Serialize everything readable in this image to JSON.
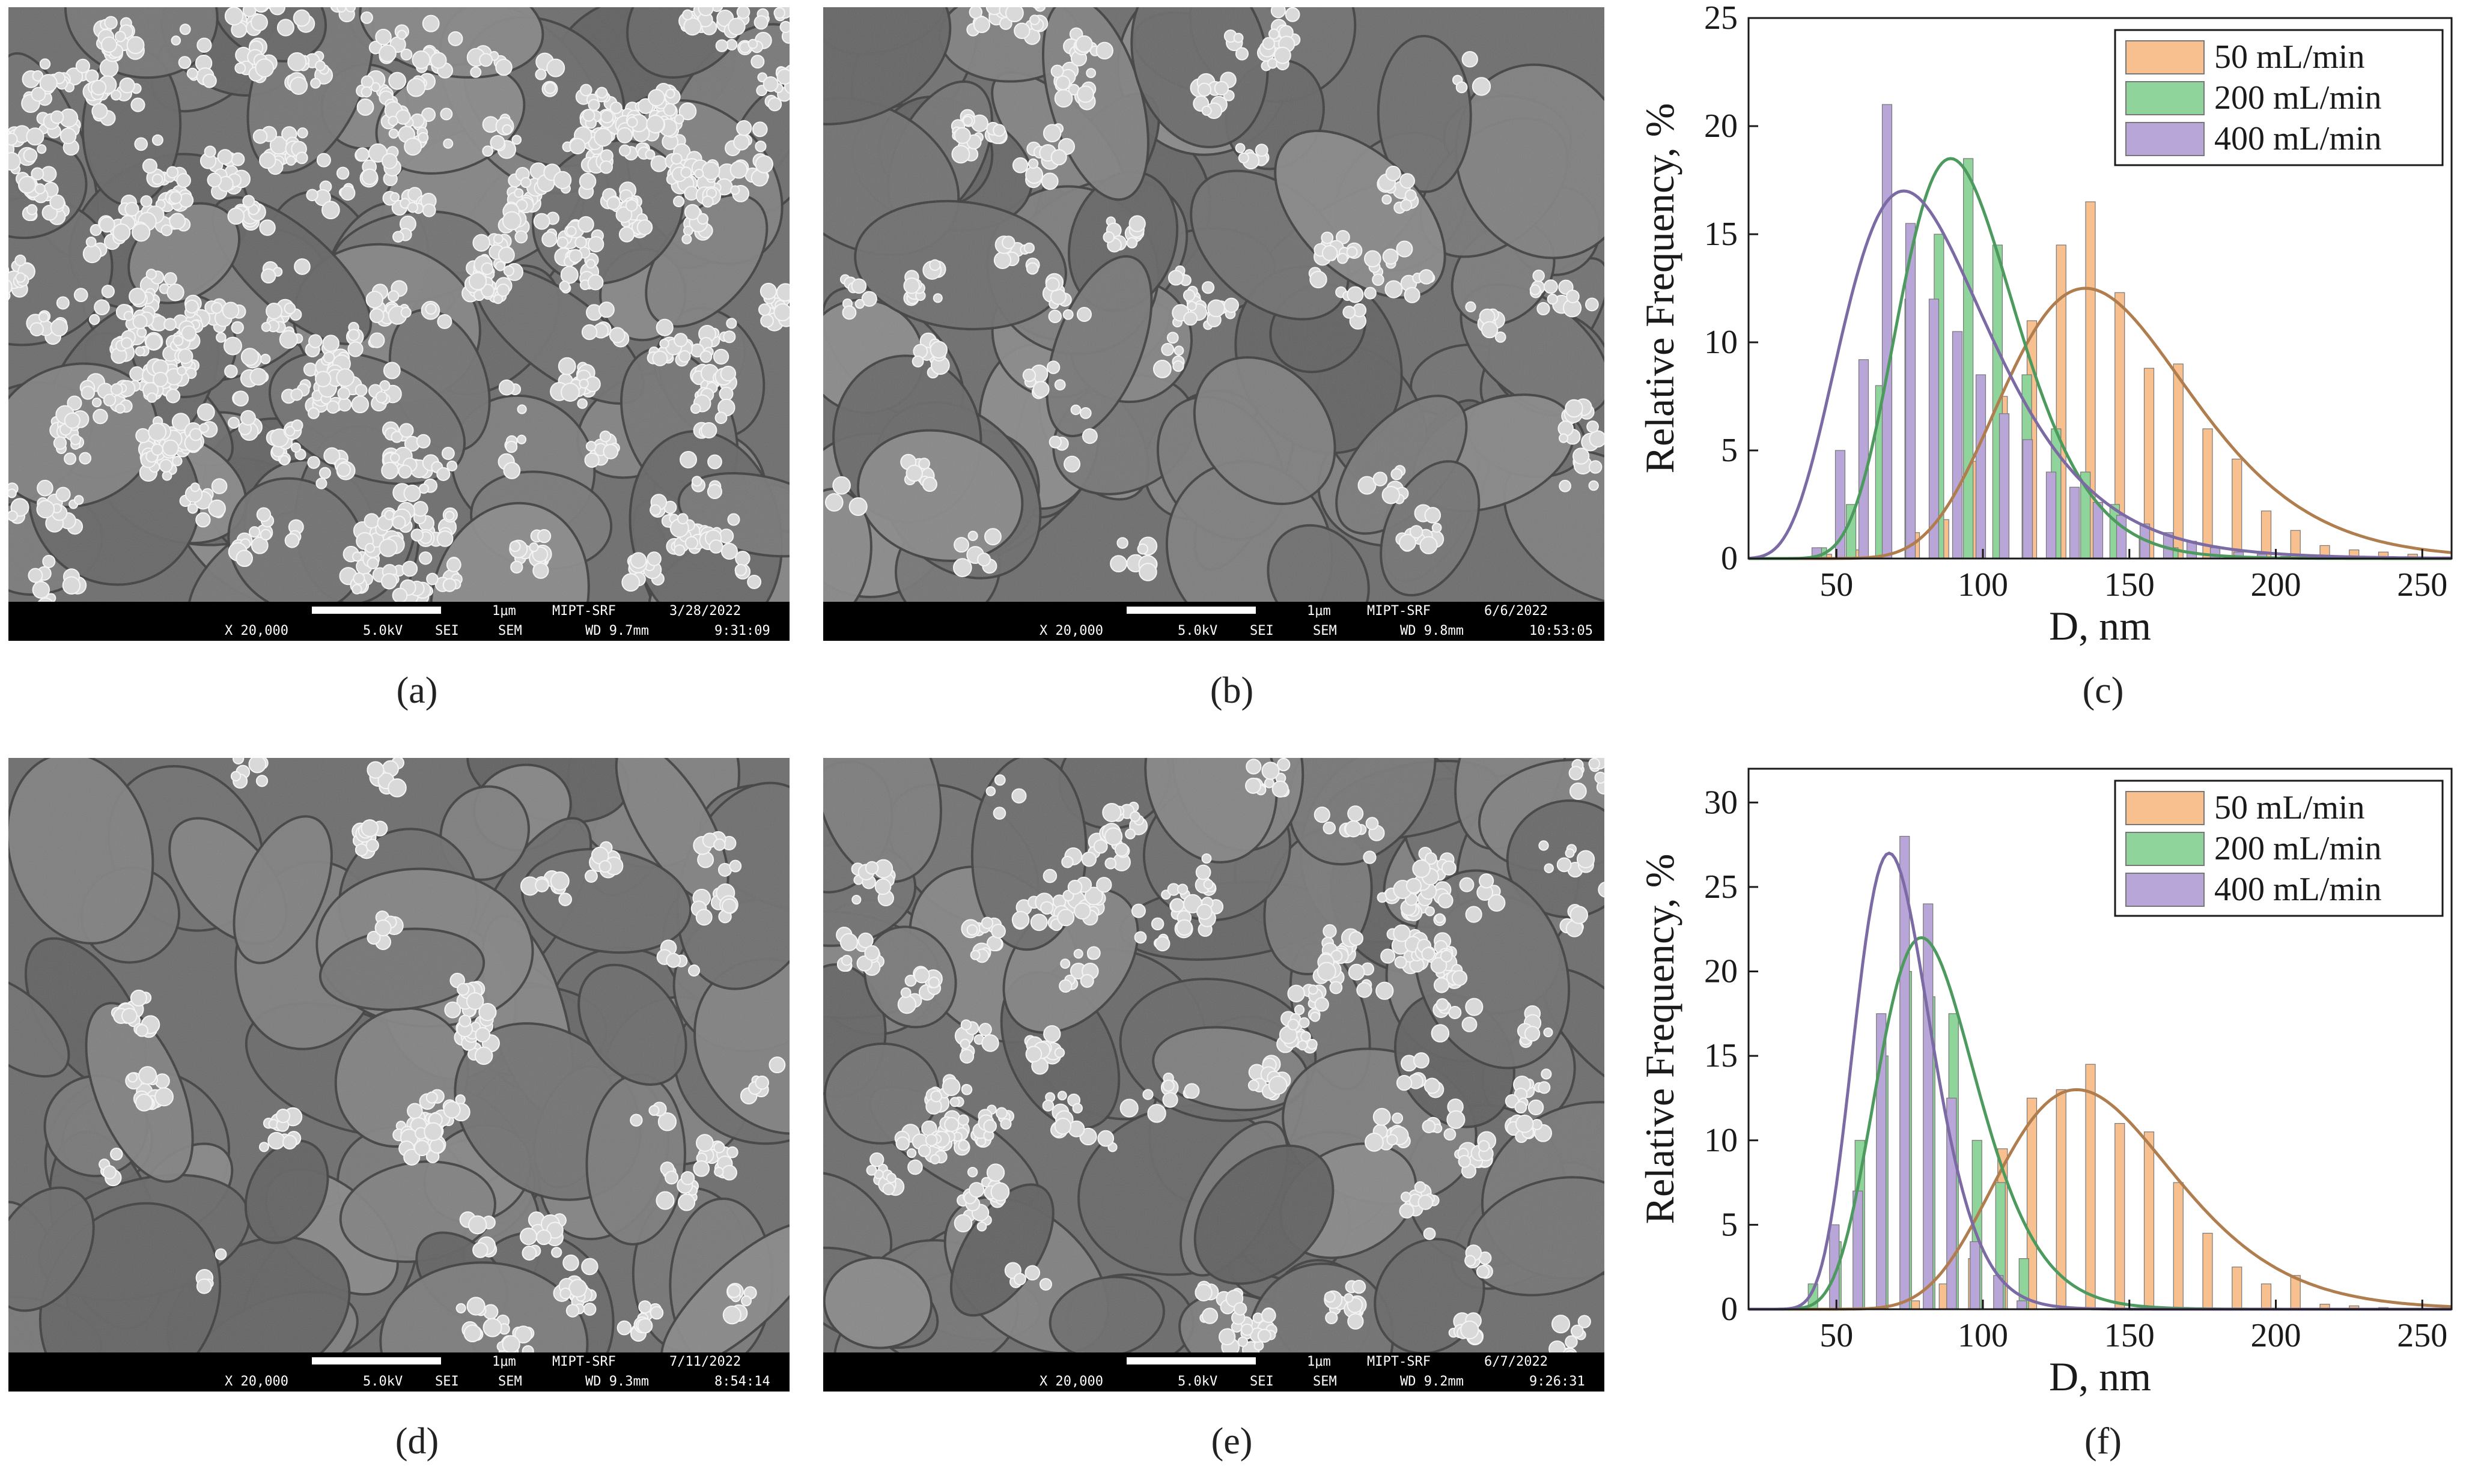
{
  "sem_panels": [
    {
      "id": "a",
      "caption": "(a)",
      "magnification": "X 20,000",
      "voltage": "5.0kV",
      "detector": "SEI",
      "mode": "SEM",
      "scale_label": "1μm",
      "lab": "MIPT-SRF",
      "date": "3/28/2022",
      "wd": "WD 9.7mm",
      "time": "9:31:09"
    },
    {
      "id": "b",
      "caption": "(b)",
      "magnification": "X 20,000",
      "voltage": "5.0kV",
      "detector": "SEI",
      "mode": "SEM",
      "scale_label": "1μm",
      "lab": "MIPT-SRF",
      "date": "6/6/2022",
      "wd": "WD 9.8mm",
      "time": "10:53:05"
    },
    {
      "id": "d",
      "caption": "(d)",
      "magnification": "X 20,000",
      "voltage": "5.0kV",
      "detector": "SEI",
      "mode": "SEM",
      "scale_label": "1μm",
      "lab": "MIPT-SRF",
      "date": "7/11/2022",
      "wd": "WD 9.3mm",
      "time": "8:54:14"
    },
    {
      "id": "e",
      "caption": "(e)",
      "magnification": "X 20,000",
      "voltage": "5.0kV",
      "detector": "SEI",
      "mode": "SEM",
      "scale_label": "1μm",
      "lab": "MIPT-SRF",
      "date": "6/7/2022",
      "wd": "WD 9.2mm",
      "time": "9:26:31"
    }
  ],
  "colors": {
    "orange_bar": "#f9c08f",
    "orange_line": "#b07d4e",
    "green_bar": "#8fd49a",
    "green_line": "#4d9a5e",
    "purple_bar": "#b9a6d8",
    "purple_line": "#7b6aa3"
  },
  "chart_data": [
    {
      "id": "c",
      "caption": "(c)",
      "type": "bar",
      "xlabel": "D, nm",
      "ylabel": "Relative Frequency, %",
      "xlim": [
        20,
        260
      ],
      "ylim": [
        0,
        25
      ],
      "xticks": [
        50,
        100,
        150,
        200,
        250
      ],
      "yticks": [
        0,
        5,
        10,
        15,
        20,
        25
      ],
      "legend_position": "top-right",
      "series": [
        {
          "name": "50 mL/min",
          "color_key": "orange",
          "x": [
            50,
            60,
            70,
            80,
            90,
            100,
            110,
            120,
            130,
            140,
            150,
            160,
            170,
            180,
            190,
            200,
            210,
            220,
            230,
            240,
            250
          ],
          "values": [
            0.2,
            0.4,
            0.8,
            1.2,
            1.8,
            4.5,
            7.5,
            11,
            14.5,
            16.5,
            12.3,
            8.8,
            9,
            6,
            4.6,
            2.2,
            1.3,
            0.6,
            0.4,
            0.3,
            0.2
          ],
          "fit": {
            "mean": 135,
            "sigma": 32,
            "peak": 12.5
          }
        },
        {
          "name": "200 mL/min",
          "color_key": "green",
          "x": [
            45,
            55,
            65,
            75,
            85,
            95,
            105,
            115,
            125,
            135,
            145,
            155,
            165
          ],
          "values": [
            0.5,
            2.5,
            8,
            12,
            15,
            18.5,
            14.5,
            8.5,
            6,
            4,
            2.5,
            1,
            0.5
          ],
          "fit": {
            "mean": 89,
            "sigma": 20,
            "peak": 18.5
          }
        },
        {
          "name": "400 mL/min",
          "color_key": "purple",
          "x": [
            40,
            48,
            56,
            64,
            72,
            80,
            88,
            96,
            104,
            112,
            120,
            128,
            136,
            144,
            152,
            160,
            168,
            176,
            184,
            192,
            200
          ],
          "values": [
            0.5,
            5,
            9.2,
            21,
            15.5,
            12,
            10.5,
            8.5,
            6.7,
            5.5,
            4,
            3.3,
            2.6,
            2,
            1.6,
            1.2,
            0.8,
            0.5,
            0.3,
            0.2,
            0.1
          ],
          "fit": {
            "mean": 73,
            "sigma": 25,
            "peak": 17
          }
        }
      ]
    },
    {
      "id": "f",
      "caption": "(f)",
      "type": "bar",
      "xlabel": "D, nm",
      "ylabel": "Relative Frequency, %",
      "xlim": [
        20,
        260
      ],
      "ylim": [
        0,
        32
      ],
      "xticks": [
        50,
        100,
        150,
        200,
        250
      ],
      "yticks": [
        0,
        5,
        10,
        15,
        20,
        25,
        30
      ],
      "legend_position": "top-right",
      "series": [
        {
          "name": "50 mL/min",
          "color_key": "orange",
          "x": [
            80,
            90,
            100,
            110,
            120,
            130,
            140,
            150,
            160,
            170,
            180,
            190,
            200,
            210,
            220,
            230,
            240
          ],
          "values": [
            0.5,
            1.5,
            3,
            9.5,
            12.5,
            13,
            14.5,
            11,
            10.5,
            7.5,
            4.5,
            2.5,
            1.5,
            2,
            0.3,
            0.2,
            0.1
          ],
          "fit": {
            "mean": 132,
            "sigma": 30,
            "peak": 13
          }
        },
        {
          "name": "200 mL/min",
          "color_key": "green",
          "x": [
            42,
            50,
            58,
            66,
            74,
            82,
            90,
            98,
            106,
            114
          ],
          "values": [
            1.5,
            4,
            10,
            15,
            20,
            18.5,
            17.5,
            10,
            7.5,
            3
          ],
          "fit": {
            "mean": 79,
            "sigma": 17,
            "peak": 22
          }
        },
        {
          "name": "400 mL/min",
          "color_key": "purple",
          "x": [
            46,
            54,
            62,
            70,
            78,
            86,
            94,
            102,
            110
          ],
          "values": [
            5,
            7,
            17.5,
            28,
            24,
            12.5,
            4,
            2,
            0.5
          ],
          "fit": {
            "mean": 68,
            "sigma": 13,
            "peak": 27
          }
        }
      ]
    }
  ]
}
